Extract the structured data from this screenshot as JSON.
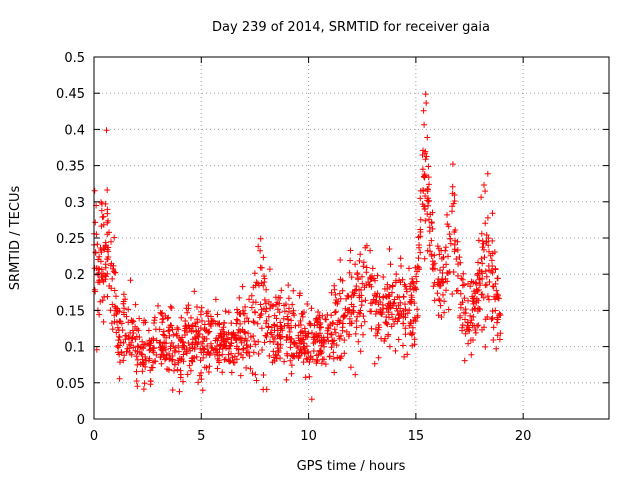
{
  "chart_data": {
    "type": "scatter",
    "title": "Day 239 of 2014, SRMTID for receiver gaia",
    "xlabel": "GPS time / hours",
    "ylabel": "SRMTID / TECUs",
    "xlim": [
      0,
      24
    ],
    "ylim": [
      0,
      0.5
    ],
    "x_ticks": [
      0,
      5,
      10,
      15,
      20
    ],
    "x_tick_labels": [
      "0",
      "5",
      "10",
      "15",
      "20"
    ],
    "y_ticks": [
      0,
      0.05,
      0.1,
      0.15,
      0.2,
      0.25,
      0.3,
      0.35,
      0.4,
      0.45,
      0.5
    ],
    "y_tick_labels": [
      "0",
      "0.05",
      "0.1",
      "0.15",
      "0.2",
      "0.25",
      "0.3",
      "0.35",
      "0.4",
      "0.45",
      "0.5"
    ],
    "grid": true,
    "marker": "plus",
    "color": "#ff0000",
    "series": [
      {
        "name": "SRMTID",
        "envelope": {
          "x": [
            0.0,
            0.3,
            0.6,
            0.9,
            1.2,
            1.5,
            1.8,
            2.1,
            2.4,
            2.7,
            3.0,
            3.5,
            4.0,
            4.5,
            5.0,
            5.5,
            6.0,
            6.5,
            7.0,
            7.5,
            7.9,
            8.3,
            8.8,
            9.3,
            9.8,
            10.3,
            10.8,
            11.3,
            11.8,
            12.3,
            12.7,
            13.1,
            13.5,
            13.9,
            14.3,
            14.7,
            15.0,
            15.3,
            15.5,
            15.7,
            15.9,
            16.2,
            16.5,
            16.8,
            17.0,
            17.3,
            17.6,
            17.9,
            18.2,
            18.5,
            18.8,
            19.0
          ],
          "center": [
            0.22,
            0.2,
            0.24,
            0.18,
            0.12,
            0.13,
            0.12,
            0.1,
            0.09,
            0.095,
            0.1,
            0.105,
            0.1,
            0.11,
            0.1,
            0.11,
            0.105,
            0.1,
            0.11,
            0.13,
            0.16,
            0.12,
            0.13,
            0.12,
            0.11,
            0.11,
            0.12,
            0.13,
            0.15,
            0.17,
            0.18,
            0.15,
            0.16,
            0.15,
            0.17,
            0.14,
            0.16,
            0.32,
            0.36,
            0.23,
            0.2,
            0.18,
            0.22,
            0.27,
            0.23,
            0.12,
            0.14,
            0.18,
            0.22,
            0.2,
            0.15,
            0.12
          ],
          "spread": [
            0.09,
            0.07,
            0.1,
            0.08,
            0.04,
            0.05,
            0.05,
            0.04,
            0.05,
            0.04,
            0.045,
            0.045,
            0.04,
            0.045,
            0.05,
            0.045,
            0.035,
            0.04,
            0.05,
            0.07,
            0.11,
            0.05,
            0.05,
            0.05,
            0.04,
            0.04,
            0.04,
            0.05,
            0.06,
            0.07,
            0.06,
            0.05,
            0.05,
            0.05,
            0.06,
            0.04,
            0.05,
            0.1,
            0.11,
            0.05,
            0.05,
            0.05,
            0.07,
            0.1,
            0.1,
            0.05,
            0.05,
            0.06,
            0.1,
            0.08,
            0.04,
            0.03
          ]
        },
        "num_points": 1500,
        "x_range": [
          0,
          19
        ]
      }
    ]
  }
}
